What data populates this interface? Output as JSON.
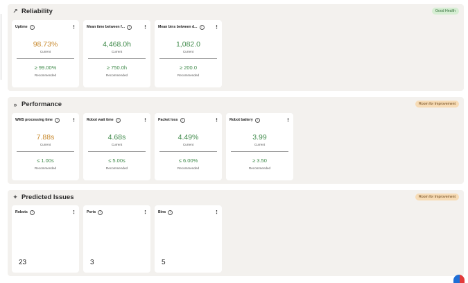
{
  "sections": {
    "reliability": {
      "title": "Reliability",
      "icon": "trend-up-icon",
      "badge": "Good Health",
      "cards": [
        {
          "title": "Uptime",
          "current": "98.73%",
          "current_label": "Current",
          "recommended": "≥ 99.00%",
          "recommended_label": "Recommended"
        },
        {
          "title": "Mean time between f...",
          "current": "4,468.0h",
          "current_label": "Current",
          "recommended": "≥ 750.0h",
          "recommended_label": "Recommended"
        },
        {
          "title": "Mean bins between d...",
          "current": "1,082.0",
          "current_label": "Current",
          "recommended": "≥ 200.0",
          "recommended_label": "Recommended"
        }
      ]
    },
    "performance": {
      "title": "Performance",
      "icon": "fast-forward-icon",
      "badge": "Room for Improvement",
      "cards": [
        {
          "title": "WMS processing time",
          "current": "7.88s",
          "current_label": "Current",
          "recommended": "≤ 1.00s",
          "recommended_label": "Recommended"
        },
        {
          "title": "Robot wait time",
          "current": "4.68s",
          "current_label": "Current",
          "recommended": "≤ 5.00s",
          "recommended_label": "Recommended"
        },
        {
          "title": "Packet loss",
          "current": "4.49%",
          "current_label": "Current",
          "recommended": "≤ 6.00%",
          "recommended_label": "Recommended"
        },
        {
          "title": "Robot battery",
          "current": "3.99",
          "current_label": "Current",
          "recommended": "≥ 3.50",
          "recommended_label": "Recommended"
        }
      ]
    },
    "predicted_issues": {
      "title": "Predicted Issues",
      "icon": "sparkle-icon",
      "badge": "Room for Improvement",
      "cards": [
        {
          "title": "Robots",
          "count": "23"
        },
        {
          "title": "Ports",
          "count": "3"
        },
        {
          "title": "Bins",
          "count": "5"
        }
      ]
    }
  },
  "colors": {
    "panel_bg": "#f3f1ee",
    "warning_value": "#c88a2e",
    "good_value": "#3f8a4a",
    "badge_good_bg": "#d6eed3",
    "badge_warn_bg": "#f7dcb6"
  }
}
